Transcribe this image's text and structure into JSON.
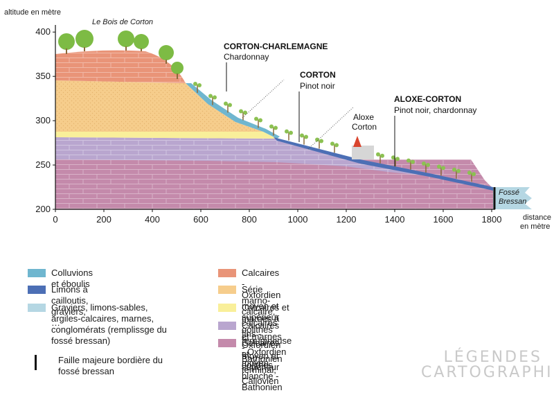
{
  "chart": {
    "y_axis_title": "altitude en mètre",
    "x_axis_title_line1": "distance",
    "x_axis_title_line2": "en mètre",
    "y_ticks": [
      {
        "value": 400,
        "label": "400"
      },
      {
        "value": 350,
        "label": "350"
      },
      {
        "value": 300,
        "label": "300"
      },
      {
        "value": 250,
        "label": "250"
      },
      {
        "value": 200,
        "label": "200"
      }
    ],
    "x_ticks": [
      {
        "value": 0,
        "label": "0"
      },
      {
        "value": 200,
        "label": "200"
      },
      {
        "value": 400,
        "label": "400"
      },
      {
        "value": 600,
        "label": "600"
      },
      {
        "value": 800,
        "label": "800"
      },
      {
        "value": 1000,
        "label": "1000"
      },
      {
        "value": 1200,
        "label": "1200"
      },
      {
        "value": 1400,
        "label": "1400"
      },
      {
        "value": 1600,
        "label": "1600"
      },
      {
        "value": 1800,
        "label": "1800"
      }
    ]
  },
  "labels": {
    "bois": "Le Bois de Corton",
    "corton_charlemagne": "CORTON-CHARLEMAGNE",
    "corton_charlemagne_grape": "Chardonnay",
    "corton": "CORTON",
    "corton_grape": "Pinot noir",
    "aloxe_corton": "ALOXE-CORTON",
    "aloxe_corton_grape": "Pinot noir, chardonnay",
    "village_line1": "Aloxe",
    "village_line2": "Corton",
    "fosse_line1": "Fossé",
    "fosse_line2": "Bressan"
  },
  "legend": {
    "left": [
      {
        "label": "Colluvions et éboulis",
        "color": "#6fb6cf"
      },
      {
        "label": "Limons à cailloutis, graviers, …",
        "color": "#4c6fb5"
      },
      {
        "label": "Graviers, limons-sables, argiles-calcaires, marnes, conglomérats (remplissge du fossé bressan)",
        "color": "#b5d7e3"
      },
      {
        "label": "Faille majeure bordière du fossé bressan",
        "color": "#111111"
      }
    ],
    "right": [
      {
        "label": "Calcaires - Oxfordien moyen et supérieur",
        "color": "#e99478"
      },
      {
        "label": "Série marno-calcaire, calcaires fins - Oxfordien moyen et supérieur",
        "color": "#f6cd8c"
      },
      {
        "label": "Calcaires et marnes à oolithes ferrugineuse - Oxfordien moyen",
        "color": "#f9ef9a"
      },
      {
        "label": "Calcaires et marnes - Bathonien terminal, Callovien",
        "color": "#b9a6cf"
      },
      {
        "label": "Calcaires et oolithes blanche - Bathonien",
        "color": "#c48aab"
      }
    ]
  },
  "watermark": {
    "line1": "LÉGENDES",
    "line2": "CARTOGRAPHIE"
  }
}
